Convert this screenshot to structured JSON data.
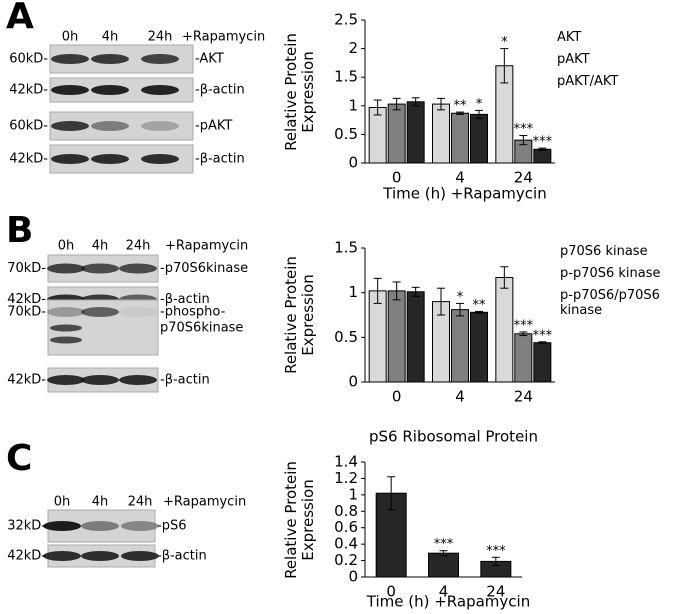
{
  "blots": [
    {
      "letter": "A",
      "lanes": [
        "0h",
        "4h",
        "24h"
      ],
      "treatment": "+Rapamycin",
      "rows": [
        {
          "mw": "60kD-",
          "label": [
            "-AKT"
          ]
        },
        {
          "mw": "42kD-",
          "label": [
            "-β-actin"
          ]
        },
        {
          "mw": "60kD-",
          "label": [
            "-pAKT"
          ]
        },
        {
          "mw": "42kD-",
          "label": [
            "-β-actin"
          ]
        }
      ]
    },
    {
      "letter": "B",
      "lanes": [
        "0h",
        "4h",
        "24h"
      ],
      "treatment": "+Rapamycin",
      "rows": [
        {
          "mw": "70kD-",
          "label": [
            "-p70S6kinase"
          ]
        },
        {
          "mw": "42kD-",
          "label": [
            "-β-actin"
          ]
        },
        {
          "mw": "70kD-",
          "label": [
            "-phospho-",
            "p70S6kinase"
          ]
        },
        {
          "mw": "42kD-",
          "label": [
            "-β-actin"
          ]
        }
      ]
    },
    {
      "letter": "C",
      "lanes": [
        "0h",
        "4h",
        "24h"
      ],
      "treatment": "+Rapamycin",
      "rows": [
        {
          "mw": "32kD-",
          "label": [
            "-pS6"
          ]
        },
        {
          "mw": "42kD-",
          "label": [
            "-β-actin"
          ]
        }
      ]
    }
  ],
  "chart_data": [
    {
      "type": "bar",
      "ylabel": "Relative Protein Expression",
      "xlabel": "Time (h) +Rapamycin",
      "categories": [
        "0",
        "4",
        "24"
      ],
      "ylim": [
        0,
        2.5
      ],
      "yticks": [
        0,
        0.5,
        1,
        1.5,
        2,
        2.5
      ],
      "series": [
        {
          "name": "AKT",
          "color": "#d9d9d9",
          "values": [
            0.97,
            1.03,
            1.7
          ],
          "errors": [
            0.13,
            0.1,
            0.3
          ],
          "significance": [
            null,
            null,
            "*"
          ]
        },
        {
          "name": "pAKT",
          "color": "#808080",
          "values": [
            1.03,
            0.87,
            0.4
          ],
          "errors": [
            0.1,
            0.02,
            0.08
          ],
          "significance": [
            null,
            "**",
            "***"
          ]
        },
        {
          "name": "pAKT/AKT",
          "color": "#262626",
          "values": [
            1.07,
            0.85,
            0.24
          ],
          "errors": [
            0.07,
            0.07,
            0.02
          ],
          "significance": [
            null,
            "*",
            "***"
          ]
        }
      ]
    },
    {
      "type": "bar",
      "ylabel": "Relative Protein Expression",
      "categories": [
        "0",
        "4",
        "24"
      ],
      "ylim": [
        0,
        1.5
      ],
      "yticks": [
        0,
        0.5,
        1,
        1.5
      ],
      "series": [
        {
          "name": "p70S6 kinase",
          "color": "#d9d9d9",
          "values": [
            1.02,
            0.9,
            1.17
          ],
          "errors": [
            0.14,
            0.15,
            0.12
          ],
          "significance": [
            null,
            null,
            null
          ]
        },
        {
          "name": "p-p70S6 kinase",
          "color": "#808080",
          "values": [
            1.02,
            0.81,
            0.54
          ],
          "errors": [
            0.1,
            0.07,
            0.02
          ],
          "significance": [
            null,
            "*",
            "***"
          ]
        },
        {
          "name": "p-p70S6/p70S6 kinase",
          "color": "#262626",
          "values": [
            1.01,
            0.78,
            0.44
          ],
          "errors": [
            0.05,
            0.01,
            0.01
          ],
          "significance": [
            null,
            "**",
            "***"
          ]
        }
      ]
    },
    {
      "type": "bar",
      "title": "pS6 Ribosomal Protein",
      "ylabel": "Relative Protein Expression",
      "xlabel": "Time (h) +Rapamycin",
      "categories": [
        "0",
        "4",
        "24"
      ],
      "ylim": [
        0,
        1.4
      ],
      "yticks": [
        0,
        0.2,
        0.4,
        0.6,
        0.8,
        1,
        1.2,
        1.4
      ],
      "color": "#262626",
      "values": [
        1.02,
        0.29,
        0.19
      ],
      "errors": [
        0.2,
        0.03,
        0.05
      ],
      "significance": [
        null,
        "***",
        "***"
      ]
    }
  ]
}
